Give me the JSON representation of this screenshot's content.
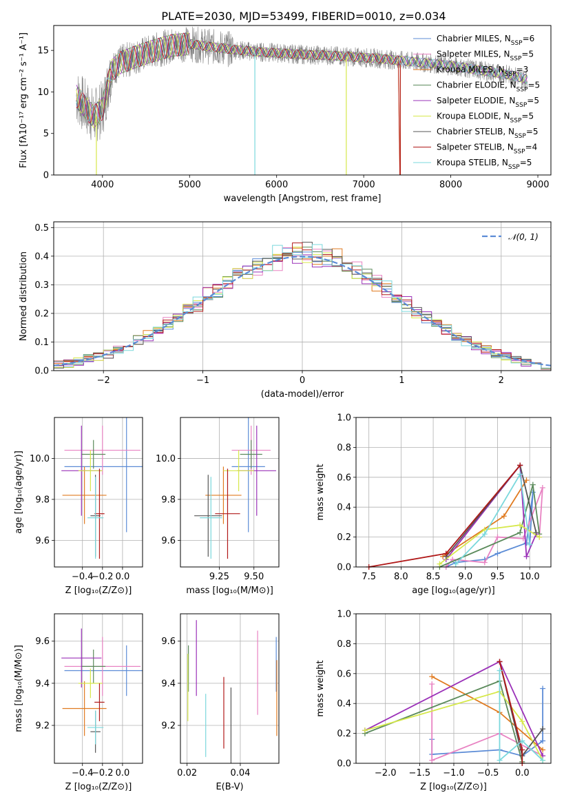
{
  "title": "PLATE=2030, MJD=53499, FIBERID=0010, z=0.034",
  "colors": {
    "chabrier_miles": "#5b8bd6",
    "salpeter_miles": "#e882c2",
    "kroupa_miles": "#e07a1f",
    "chabrier_elodie": "#5a8a5a",
    "salpeter_elodie": "#9a30b8",
    "kroupa_elodie": "#d6e84a",
    "chabrier_stelib": "#555555",
    "salpeter_stelib": "#b01818",
    "kroupa_stelib": "#7ad8dc",
    "data": "#808080",
    "normal": "#5b8bd6"
  },
  "chart_data": [
    {
      "id": "spectrum",
      "type": "line",
      "title": "PLATE=2030, MJD=53499, FIBERID=0010, z=0.034",
      "xlabel": "wavelength [Angstrom, rest frame]",
      "ylabel": "Flux [fλ10⁻¹⁷ erg cm⁻² s⁻¹ A⁻¹]",
      "xlim": [
        3440,
        9150
      ],
      "ylim": [
        0,
        18
      ],
      "xticks": [
        "4000",
        "5000",
        "6000",
        "7000",
        "8000",
        "9000"
      ],
      "yticks": [
        "0",
        "5",
        "10",
        "15"
      ],
      "grid": false,
      "legend": "top-right",
      "legend_entries": [
        {
          "name": "Chabrier MILES, N",
          "sub": "SSP",
          "eq": "=6",
          "color_key": "chabrier_miles"
        },
        {
          "name": "Salpeter MILES, N",
          "sub": "SSP",
          "eq": "=5",
          "color_key": "salpeter_miles"
        },
        {
          "name": "Kroupa MILES, N",
          "sub": "SSP",
          "eq": "=3",
          "color_key": "kroupa_miles"
        },
        {
          "name": "Chabrier ELODIE, N",
          "sub": "SSP",
          "eq": "=5",
          "color_key": "chabrier_elodie"
        },
        {
          "name": "Salpeter ELODIE, N",
          "sub": "SSP",
          "eq": "=5",
          "color_key": "salpeter_elodie"
        },
        {
          "name": "Kroupa ELODIE, N",
          "sub": "SSP",
          "eq": "=5",
          "color_key": "kroupa_elodie"
        },
        {
          "name": "Chabrier STELIB, N",
          "sub": "SSP",
          "eq": "=5",
          "color_key": "chabrier_stelib"
        },
        {
          "name": "Salpeter STELIB, N",
          "sub": "SSP",
          "eq": "=4",
          "color_key": "salpeter_stelib"
        },
        {
          "name": "Kroupa STELIB, N",
          "sub": "SSP",
          "eq": "=5",
          "color_key": "kroupa_stelib"
        }
      ],
      "continuum": {
        "x": [
          3700,
          3800,
          3900,
          4000,
          4100,
          4200,
          4400,
          4600,
          4800,
          5000,
          5200,
          5500,
          5800,
          6000,
          6300,
          6600,
          6900,
          7200,
          7500,
          7800,
          8100,
          8400,
          8700,
          8880
        ],
        "y": [
          9.5,
          8.2,
          7.0,
          8.0,
          12.5,
          13.5,
          14.3,
          15.0,
          15.6,
          15.8,
          15.5,
          15.1,
          14.8,
          14.7,
          14.5,
          14.4,
          14.2,
          14.0,
          13.7,
          13.4,
          13.0,
          12.5,
          12.0,
          11.5
        ]
      },
      "model_drops": [
        {
          "color_key": "kroupa_stelib",
          "x": 5750
        },
        {
          "color_key": "kroupa_elodie",
          "x": 3930
        },
        {
          "color_key": "kroupa_elodie",
          "x": 6800
        },
        {
          "color_key": "kroupa_miles",
          "x": 7420
        },
        {
          "color_key": "salpeter_stelib",
          "x": 7420
        }
      ]
    },
    {
      "id": "residuals",
      "type": "histogram",
      "xlabel": "(data-model)/error",
      "ylabel": "Normed distribution",
      "xlim": [
        -2.5,
        2.5
      ],
      "ylim": [
        0,
        0.52
      ],
      "xticks": [
        "−2",
        "−1",
        "0",
        "1",
        "2"
      ],
      "yticks": [
        "0.0",
        "0.1",
        "0.2",
        "0.3",
        "0.4",
        "0.5"
      ],
      "grid": true,
      "legend": "top-right",
      "legend_entry": "𝒩(0, 1)",
      "bin_width": 0.1
    },
    {
      "id": "age_vs_z",
      "type": "errorbar",
      "xlabel": "Z [log₁₀(Z/Z⊙)]",
      "ylabel": "age  [log₁₀(age/yr)]",
      "xlim": [
        -0.68,
        0.2
      ],
      "ylim": [
        9.47,
        10.2
      ],
      "xticks": [
        "−0.4",
        "−0.2",
        "0.0"
      ],
      "yticks": [
        "9.6",
        "9.8",
        "10.0"
      ],
      "grid": true,
      "points": [
        {
          "color_key": "chabrier_miles",
          "x": 0.04,
          "xerr": 0.62,
          "y": 9.96,
          "yerr": 0.32
        },
        {
          "color_key": "salpeter_miles",
          "x": -0.2,
          "xerr": 0.38,
          "y": 10.04,
          "yerr": 0.12
        },
        {
          "color_key": "kroupa_miles",
          "x": -0.38,
          "xerr": 0.22,
          "y": 9.82,
          "yerr": 0.14
        },
        {
          "color_key": "chabrier_elodie",
          "x": -0.29,
          "xerr": 0.12,
          "y": 10.02,
          "yerr": 0.07
        },
        {
          "color_key": "salpeter_elodie",
          "x": -0.41,
          "xerr": 0.2,
          "y": 9.94,
          "yerr": 0.22
        },
        {
          "color_key": "kroupa_elodie",
          "x": -0.32,
          "xerr": 0.12,
          "y": 9.94,
          "yerr": 0.1
        },
        {
          "color_key": "chabrier_stelib",
          "x": -0.27,
          "xerr": 0.05,
          "y": 9.72,
          "yerr": 0.2
        },
        {
          "color_key": "salpeter_stelib",
          "x": -0.23,
          "xerr": 0.05,
          "y": 9.73,
          "yerr": 0.22
        },
        {
          "color_key": "kroupa_stelib",
          "x": -0.27,
          "xerr": 0.08,
          "y": 9.71,
          "yerr": 0.2
        }
      ]
    },
    {
      "id": "age_vs_mass",
      "type": "errorbar",
      "xlabel": "mass [log₁₀(M/M⊙)]",
      "ylabel": "",
      "xlim": [
        8.97,
        9.68
      ],
      "ylim": [
        9.47,
        10.2
      ],
      "xticks": [
        "9.25",
        "9.50"
      ],
      "yticks": [
        "9.6",
        "9.8",
        "10.0"
      ],
      "grid": true,
      "points": [
        {
          "color_key": "chabrier_miles",
          "x": 9.46,
          "xerr": 0.12,
          "y": 9.96,
          "yerr": 0.32
        },
        {
          "color_key": "salpeter_miles",
          "x": 9.48,
          "xerr": 0.14,
          "y": 10.04,
          "yerr": 0.12
        },
        {
          "color_key": "kroupa_miles",
          "x": 9.28,
          "xerr": 0.13,
          "y": 9.82,
          "yerr": 0.14
        },
        {
          "color_key": "chabrier_elodie",
          "x": 9.48,
          "xerr": 0.08,
          "y": 10.02,
          "yerr": 0.07
        },
        {
          "color_key": "salpeter_elodie",
          "x": 9.52,
          "xerr": 0.14,
          "y": 9.94,
          "yerr": 0.22
        },
        {
          "color_key": "kroupa_elodie",
          "x": 9.39,
          "xerr": 0.11,
          "y": 9.94,
          "yerr": 0.1
        },
        {
          "color_key": "chabrier_stelib",
          "x": 9.17,
          "xerr": 0.1,
          "y": 9.72,
          "yerr": 0.2
        },
        {
          "color_key": "salpeter_stelib",
          "x": 9.31,
          "xerr": 0.09,
          "y": 9.73,
          "yerr": 0.22
        },
        {
          "color_key": "kroupa_stelib",
          "x": 9.19,
          "xerr": 0.08,
          "y": 9.71,
          "yerr": 0.2
        }
      ]
    },
    {
      "id": "weight_vs_age",
      "type": "line",
      "xlabel": "age  [log₁₀(age/yr)]",
      "ylabel": "mass weight",
      "xlim": [
        7.3,
        10.33
      ],
      "ylim": [
        0,
        1
      ],
      "xticks": [
        "7.5",
        "8.0",
        "8.5",
        "9.0",
        "9.5",
        "10.0"
      ],
      "yticks": [
        "0.0",
        "0.2",
        "0.4",
        "0.6",
        "0.8",
        "1.0"
      ],
      "grid": true,
      "series": [
        {
          "color_key": "chabrier_miles",
          "x": [
            8.7,
            8.85,
            9.3,
            9.5,
            9.95,
            10.05,
            10.0
          ],
          "y": [
            0.0,
            0.03,
            0.05,
            0.09,
            0.16,
            0.5,
            0.15
          ]
        },
        {
          "color_key": "salpeter_miles",
          "x": [
            8.7,
            8.8,
            9.3,
            9.5,
            9.9,
            10.2,
            10.15
          ],
          "y": [
            0.0,
            0.05,
            0.03,
            0.2,
            0.19,
            0.53,
            0.2
          ]
        },
        {
          "color_key": "kroupa_miles",
          "x": [
            8.65,
            9.6,
            9.95
          ],
          "y": [
            0.07,
            0.34,
            0.58
          ]
        },
        {
          "color_key": "chabrier_elodie",
          "x": [
            8.6,
            9.85,
            10.05,
            10.15
          ],
          "y": [
            0.0,
            0.23,
            0.55,
            0.22
          ]
        },
        {
          "color_key": "salpeter_elodie",
          "x": [
            8.7,
            9.85,
            9.95,
            10.1
          ],
          "y": [
            0.05,
            0.68,
            0.07,
            0.22
          ]
        },
        {
          "color_key": "kroupa_elodie",
          "x": [
            8.6,
            9.3,
            9.85,
            10.15
          ],
          "y": [
            0.02,
            0.25,
            0.28,
            0.2
          ]
        },
        {
          "color_key": "chabrier_stelib",
          "x": [
            8.7,
            9.85,
            10.1
          ],
          "y": [
            0.07,
            0.68,
            0.23
          ]
        },
        {
          "color_key": "salpeter_stelib",
          "x": [
            7.5,
            8.7,
            9.85
          ],
          "y": [
            0.0,
            0.09,
            0.68
          ]
        },
        {
          "color_key": "kroupa_stelib",
          "x": [
            8.85,
            9.3,
            9.85,
            10.0
          ],
          "y": [
            0.02,
            0.22,
            0.62,
            0.15
          ]
        }
      ]
    },
    {
      "id": "mass_vs_z",
      "type": "errorbar",
      "xlabel": "Z [log₁₀(Z/Z⊙)]",
      "ylabel": "mass [log₁₀(M/M⊙)]",
      "xlim": [
        -0.68,
        0.2
      ],
      "ylim": [
        9.02,
        9.73
      ],
      "xticks": [
        "−0.4",
        "−0.2",
        "0.0"
      ],
      "yticks": [
        "9.2",
        "9.4",
        "9.6"
      ],
      "grid": true,
      "points": [
        {
          "color_key": "chabrier_miles",
          "x": 0.04,
          "xerr": 0.62,
          "y": 9.46,
          "yerr": 0.12
        },
        {
          "color_key": "salpeter_miles",
          "x": -0.2,
          "xerr": 0.38,
          "y": 9.48,
          "yerr": 0.14
        },
        {
          "color_key": "kroupa_miles",
          "x": -0.38,
          "xerr": 0.22,
          "y": 9.28,
          "yerr": 0.13
        },
        {
          "color_key": "chabrier_elodie",
          "x": -0.29,
          "xerr": 0.12,
          "y": 9.48,
          "yerr": 0.08
        },
        {
          "color_key": "salpeter_elodie",
          "x": -0.41,
          "xerr": 0.2,
          "y": 9.52,
          "yerr": 0.14
        },
        {
          "color_key": "kroupa_elodie",
          "x": -0.32,
          "xerr": 0.12,
          "y": 9.4,
          "yerr": 0.07
        },
        {
          "color_key": "chabrier_stelib",
          "x": -0.27,
          "xerr": 0.05,
          "y": 9.17,
          "yerr": 0.1
        },
        {
          "color_key": "salpeter_stelib",
          "x": -0.23,
          "xerr": 0.05,
          "y": 9.31,
          "yerr": 0.09
        },
        {
          "color_key": "kroupa_stelib",
          "x": -0.27,
          "xerr": 0.08,
          "y": 9.19,
          "yerr": 0.08
        }
      ]
    },
    {
      "id": "mass_vs_ebv",
      "type": "errorbar",
      "xlabel": "E(B-V)",
      "ylabel": "",
      "xlim": [
        0.0175,
        0.0545
      ],
      "ylim": [
        9.02,
        9.73
      ],
      "xticks": [
        "0.02",
        "0.04"
      ],
      "yticks": [
        "9.2",
        "9.4",
        "9.6"
      ],
      "grid": true,
      "points": [
        {
          "color_key": "chabrier_miles",
          "x": 0.0535,
          "xerr": 0,
          "y": 9.49,
          "yerr": 0.13
        },
        {
          "color_key": "salpeter_miles",
          "x": 0.0465,
          "xerr": 0,
          "y": 9.45,
          "yerr": 0.2
        },
        {
          "color_key": "kroupa_miles",
          "x": 0.0537,
          "xerr": 0,
          "y": 9.33,
          "yerr": 0.18
        },
        {
          "color_key": "chabrier_elodie",
          "x": 0.0205,
          "xerr": 0,
          "y": 9.47,
          "yerr": 0.11
        },
        {
          "color_key": "salpeter_elodie",
          "x": 0.0235,
          "xerr": 0,
          "y": 9.52,
          "yerr": 0.18
        },
        {
          "color_key": "kroupa_elodie",
          "x": 0.0203,
          "xerr": 0,
          "y": 9.38,
          "yerr": 0.16
        },
        {
          "color_key": "chabrier_stelib",
          "x": 0.0365,
          "xerr": 0,
          "y": 9.17,
          "yerr": 0.21
        },
        {
          "color_key": "salpeter_stelib",
          "x": 0.0338,
          "xerr": 0,
          "y": 9.26,
          "yerr": 0.17
        },
        {
          "color_key": "kroupa_stelib",
          "x": 0.027,
          "xerr": 0,
          "y": 9.2,
          "yerr": 0.15
        }
      ]
    },
    {
      "id": "weight_vs_z",
      "type": "line",
      "xlabel": "Z [log₁₀(Z/Z⊙)]",
      "ylabel": "mass weight",
      "xlim": [
        -2.43,
        0.42
      ],
      "ylim": [
        0,
        1
      ],
      "xticks": [
        "−2.0",
        "−1.5",
        "−1.0",
        "−0.5",
        "0.0"
      ],
      "yticks": [
        "0.0",
        "0.2",
        "0.4",
        "0.6",
        "0.8",
        "1.0"
      ],
      "grid": true,
      "series": [
        {
          "color_key": "chabrier_miles",
          "x": [
            -1.32,
            -1.32,
            -0.33,
            0.0,
            0.3,
            0.3
          ],
          "y": [
            0.16,
            0.06,
            0.09,
            0.05,
            0.15,
            0.5
          ]
        },
        {
          "color_key": "salpeter_miles",
          "x": [
            -1.32,
            -1.32,
            -0.33,
            0.3
          ],
          "y": [
            0.53,
            0.02,
            0.2,
            0.05
          ]
        },
        {
          "color_key": "kroupa_miles",
          "x": [
            -1.32,
            -0.33,
            0.3
          ],
          "y": [
            0.58,
            0.34,
            0.09
          ]
        },
        {
          "color_key": "chabrier_elodie",
          "x": [
            -2.3,
            -0.33,
            0.0
          ],
          "y": [
            0.2,
            0.55,
            0.01
          ]
        },
        {
          "color_key": "salpeter_elodie",
          "x": [
            -2.3,
            -0.33,
            0.3
          ],
          "y": [
            0.22,
            0.68,
            0.05
          ]
        },
        {
          "color_key": "kroupa_elodie",
          "x": [
            -2.3,
            -0.33,
            0.0,
            0.3
          ],
          "y": [
            0.22,
            0.48,
            0.28,
            0.02
          ]
        },
        {
          "color_key": "chabrier_stelib",
          "x": [
            -0.33,
            0.0,
            0.3
          ],
          "y": [
            0.68,
            0.05,
            0.23
          ]
        },
        {
          "color_key": "salpeter_stelib",
          "x": [
            -0.33,
            0.0,
            0.0
          ],
          "y": [
            0.68,
            0.09,
            0.0
          ]
        },
        {
          "color_key": "kroupa_stelib",
          "x": [
            -0.33,
            -0.33,
            0.0,
            0.3
          ],
          "y": [
            0.62,
            0.02,
            0.15,
            0.02
          ]
        }
      ]
    }
  ]
}
